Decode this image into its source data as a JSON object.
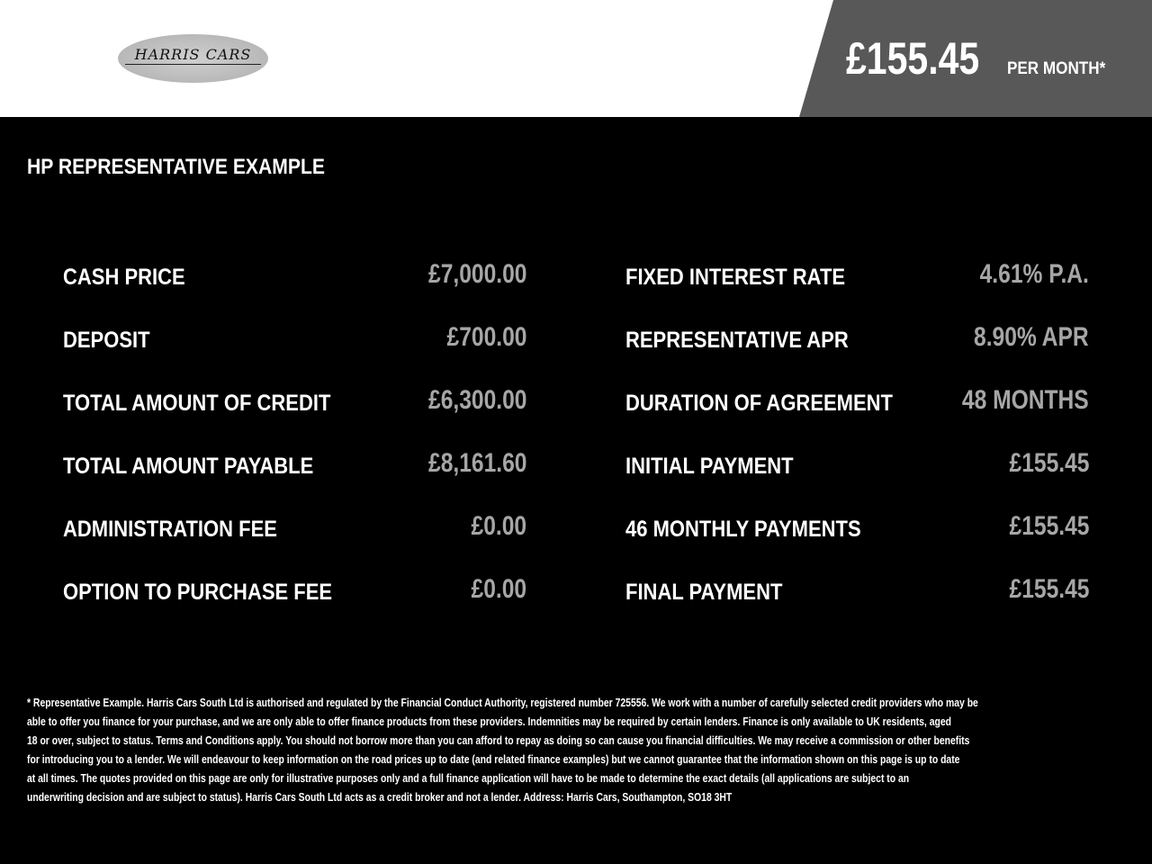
{
  "header": {
    "logo_text": "HARRIS CARS",
    "monthly_price": "£155.45",
    "per_month_label": "PER MONTH*"
  },
  "section_title": "HP REPRESENTATIVE EXAMPLE",
  "left_rows": [
    {
      "label": "CASH PRICE",
      "value": "£7,000.00"
    },
    {
      "label": "DEPOSIT",
      "value": "£700.00"
    },
    {
      "label": "TOTAL AMOUNT OF CREDIT",
      "value": "£6,300.00"
    },
    {
      "label": "TOTAL AMOUNT PAYABLE",
      "value": "£8,161.60"
    },
    {
      "label": "ADMINISTRATION FEE",
      "value": "£0.00"
    },
    {
      "label": "OPTION TO PURCHASE FEE",
      "value": "£0.00"
    }
  ],
  "right_rows": [
    {
      "label": "FIXED INTEREST RATE",
      "value": "4.61% P.A."
    },
    {
      "label": "REPRESENTATIVE APR",
      "value": "8.90% APR"
    },
    {
      "label": "DURATION OF AGREEMENT",
      "value": "48 MONTHS"
    },
    {
      "label": "INITIAL PAYMENT",
      "value": "£155.45"
    },
    {
      "label": "46 MONTHLY PAYMENTS",
      "value": "£155.45"
    },
    {
      "label": "FINAL PAYMENT",
      "value": "£155.45"
    }
  ],
  "footer_lines": [
    "* Representative Example. Harris Cars South Ltd is authorised and regulated by the Financial Conduct Authority, registered number 725556. We work with a number of carefully selected credit providers who may be",
    "able to offer you finance for your purchase, and we are only able to offer finance products from these providers. Indemnities may be required by certain lenders. Finance is only available to UK residents, aged",
    "18 or over, subject to status. Terms and Conditions apply. You should not borrow more than you can afford to repay as doing so can cause you financial difficulties. We may receive a commission or other benefits",
    "for introducing you to a lender. We will endeavour to keep information on the road prices up to date (and related finance examples) but we cannot guarantee that the information shown on this page is up to date",
    "at all times. The quotes provided on this page are only for illustrative purposes only and a full finance application will have to be made to determine the exact details (all applications are subject to an",
    "underwriting decision and are subject to status). Harris Cars South Ltd acts as a credit broker and not a lender. Address: Harris Cars, Southampton, SO18 3HT"
  ],
  "colors": {
    "header_bg": "#ffffff",
    "price_panel": "#585858",
    "body_bg": "#000000",
    "value_text": "#a6a6a6"
  }
}
